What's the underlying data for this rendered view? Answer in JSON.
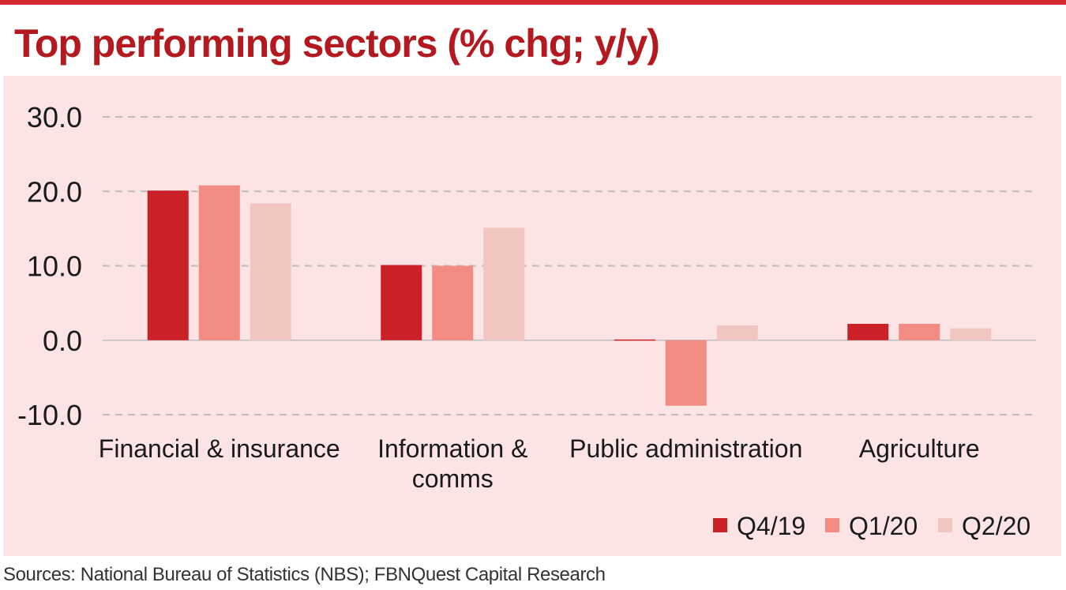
{
  "title": "Top performing sectors (% chg; y/y)",
  "source": "Sources: National Bureau of Statistics (NBS); FBNQuest Capital Research",
  "colors": {
    "top_rule": "#d42a2f",
    "title": "#b3191e",
    "panel_background": "#fce4e4",
    "gridline": "#bdbdbd",
    "series": [
      "#cc2027",
      "#f28b82",
      "#f2c6c0"
    ]
  },
  "chart_data": {
    "type": "bar",
    "title": "Top performing sectors (% chg; y/y)",
    "xlabel": "",
    "ylabel": "",
    "ylim": [
      -10,
      30
    ],
    "yticks": [
      -10,
      0,
      10,
      20,
      30
    ],
    "ytick_labels": [
      "-10.0",
      "0.0",
      "10.0",
      "20.0",
      "30.0"
    ],
    "grid": true,
    "legend_position": "bottom-right",
    "categories": [
      [
        "Financial & insurance"
      ],
      [
        "Information &",
        "comms"
      ],
      [
        "Public administration"
      ],
      [
        "Agriculture"
      ]
    ],
    "series": [
      {
        "name": "Q4/19",
        "values": [
          20.1,
          10.1,
          0.1,
          2.2
        ]
      },
      {
        "name": "Q1/20",
        "values": [
          20.8,
          10.0,
          -8.8,
          2.2
        ]
      },
      {
        "name": "Q2/20",
        "values": [
          18.4,
          15.1,
          2.0,
          1.6
        ]
      }
    ]
  }
}
